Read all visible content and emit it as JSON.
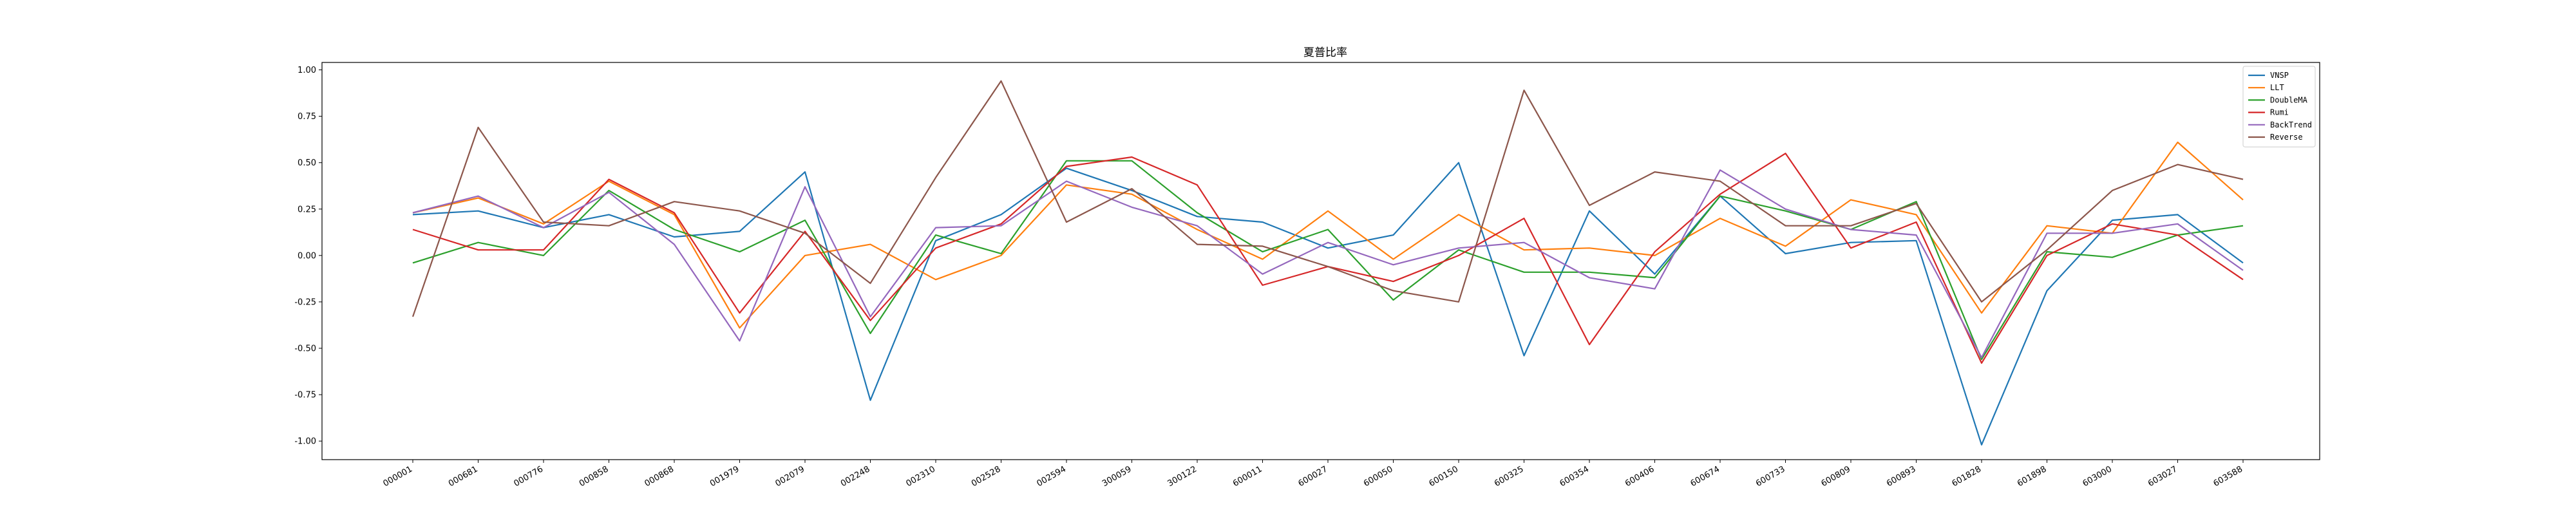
{
  "chart_data": {
    "type": "line",
    "title": "夏普比率",
    "xlabel": "",
    "ylabel": "",
    "ylim": [
      -1.1,
      1.04
    ],
    "yticks": [
      -1.0,
      -0.75,
      -0.5,
      -0.25,
      0.0,
      0.25,
      0.5,
      0.75,
      1.0
    ],
    "ytick_labels": [
      "-1.00",
      "-0.75",
      "-0.50",
      "-0.25",
      "0.00",
      "0.25",
      "0.50",
      "0.75",
      "1.00"
    ],
    "grid": false,
    "legend_position": "top-right",
    "categories": [
      "000001",
      "000681",
      "000776",
      "000858",
      "000868",
      "001979",
      "002079",
      "002248",
      "002310",
      "002528",
      "002594",
      "300059",
      "300122",
      "600011",
      "600027",
      "600050",
      "600150",
      "600325",
      "600354",
      "600406",
      "600674",
      "600733",
      "600809",
      "600893",
      "601828",
      "601898",
      "603000",
      "603027",
      "603588"
    ],
    "series": [
      {
        "name": "VNSP",
        "color": "#1f77b4",
        "values": [
          0.22,
          0.24,
          0.15,
          0.22,
          0.1,
          0.13,
          0.45,
          -0.78,
          0.08,
          0.22,
          0.47,
          0.35,
          0.21,
          0.18,
          0.04,
          0.11,
          0.5,
          -0.54,
          0.24,
          -0.1,
          0.32,
          0.01,
          0.07,
          0.08,
          -1.02,
          -0.19,
          0.19,
          0.22,
          -0.04
        ]
      },
      {
        "name": "LLT",
        "color": "#ff7f0e",
        "values": [
          0.23,
          0.31,
          0.17,
          0.4,
          0.22,
          -0.39,
          0.0,
          0.06,
          -0.13,
          0.0,
          0.38,
          0.33,
          0.14,
          -0.02,
          0.24,
          -0.02,
          0.22,
          0.03,
          0.04,
          0.0,
          0.2,
          0.05,
          0.3,
          0.22,
          -0.31,
          0.16,
          0.12,
          0.61,
          0.3
        ]
      },
      {
        "name": "DoubleMA",
        "color": "#2ca02c",
        "values": [
          -0.04,
          0.07,
          0.0,
          0.35,
          0.14,
          0.02,
          0.19,
          -0.42,
          0.11,
          0.01,
          0.51,
          0.51,
          0.23,
          0.02,
          0.14,
          -0.24,
          0.03,
          -0.09,
          -0.09,
          -0.12,
          0.32,
          0.24,
          0.14,
          0.29,
          -0.56,
          0.02,
          -0.01,
          0.11,
          0.16
        ]
      },
      {
        "name": "Rumi",
        "color": "#d62728",
        "values": [
          0.14,
          0.03,
          0.03,
          0.41,
          0.23,
          -0.31,
          0.13,
          -0.35,
          0.04,
          0.17,
          0.48,
          0.53,
          0.38,
          -0.16,
          -0.06,
          -0.14,
          0.0,
          0.2,
          -0.48,
          0.02,
          0.33,
          0.55,
          0.04,
          0.18,
          -0.58,
          0.0,
          0.17,
          0.11,
          -0.13
        ]
      },
      {
        "name": "BackTrend",
        "color": "#9467bd",
        "values": [
          0.23,
          0.32,
          0.15,
          0.34,
          0.06,
          -0.46,
          0.37,
          -0.33,
          0.15,
          0.16,
          0.4,
          0.26,
          0.16,
          -0.1,
          0.07,
          -0.05,
          0.04,
          0.07,
          -0.12,
          -0.18,
          0.46,
          0.25,
          0.14,
          0.11,
          -0.55,
          0.12,
          0.12,
          0.17,
          -0.08
        ]
      },
      {
        "name": "Reverse",
        "color": "#8c564b",
        "values": [
          -0.33,
          0.69,
          0.18,
          0.16,
          0.29,
          0.24,
          0.12,
          -0.15,
          0.42,
          0.94,
          0.18,
          0.36,
          0.06,
          0.05,
          -0.06,
          -0.19,
          -0.25,
          0.89,
          0.27,
          0.45,
          0.4,
          0.16,
          0.16,
          0.28,
          -0.25,
          0.03,
          0.35,
          0.49,
          0.41
        ]
      }
    ]
  }
}
